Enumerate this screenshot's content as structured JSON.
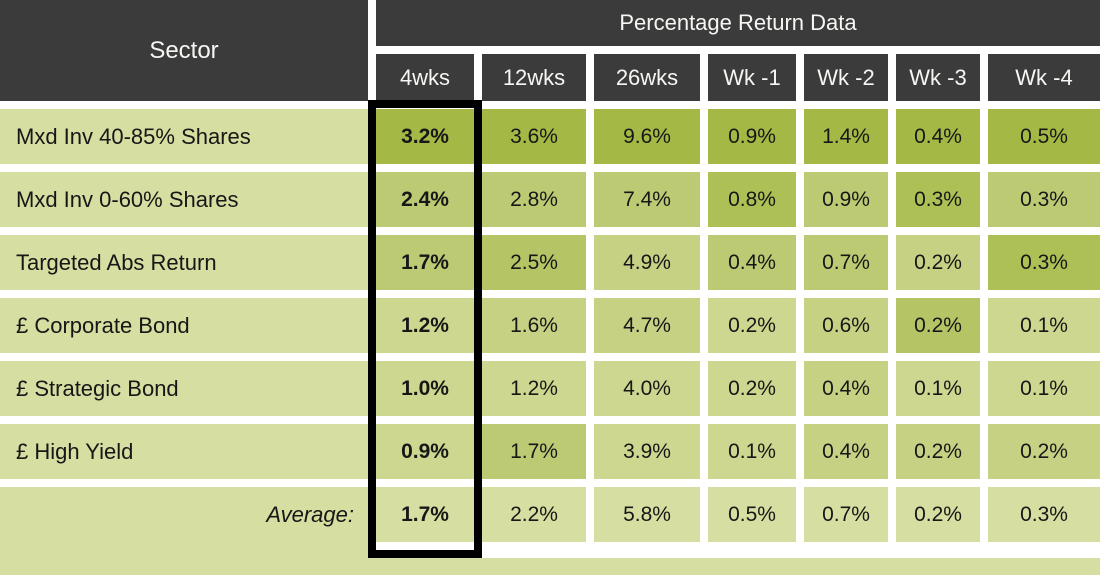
{
  "table": {
    "sector_header": "Sector",
    "group_header": "Percentage Return Data",
    "columns": [
      "4wks",
      "12wks",
      "26wks",
      "Wk -1",
      "Wk -2",
      "Wk -3",
      "Wk -4"
    ],
    "rows": [
      {
        "label": "Mxd Inv 40-85% Shares",
        "values": [
          "3.2%",
          "3.6%",
          "9.6%",
          "0.9%",
          "1.4%",
          "0.4%",
          "0.5%"
        ],
        "shades": [
          "A",
          "A",
          "A",
          "A",
          "A",
          "A",
          "A"
        ]
      },
      {
        "label": "Mxd Inv 0-60% Shares",
        "values": [
          "2.4%",
          "2.8%",
          "7.4%",
          "0.8%",
          "0.9%",
          "0.3%",
          "0.3%"
        ],
        "shades": [
          "D",
          "D",
          "D",
          "B",
          "D",
          "B",
          "D"
        ]
      },
      {
        "label": "Targeted Abs Return",
        "values": [
          "1.7%",
          "2.5%",
          "4.9%",
          "0.4%",
          "0.7%",
          "0.2%",
          "0.3%"
        ],
        "shades": [
          "D",
          "C",
          "E",
          "D",
          "D",
          "E",
          "B"
        ]
      },
      {
        "label": "£ Corporate Bond",
        "values": [
          "1.2%",
          "1.6%",
          "4.7%",
          "0.2%",
          "0.6%",
          "0.2%",
          "0.1%"
        ],
        "shades": [
          "F",
          "E",
          "E",
          "F",
          "E",
          "C",
          "F"
        ]
      },
      {
        "label": "£ Strategic Bond",
        "values": [
          "1.0%",
          "1.2%",
          "4.0%",
          "0.2%",
          "0.4%",
          "0.1%",
          "0.1%"
        ],
        "shades": [
          "F",
          "F",
          "F",
          "F",
          "E",
          "F",
          "F"
        ]
      },
      {
        "label": "£ High Yield",
        "values": [
          "0.9%",
          "1.7%",
          "3.9%",
          "0.1%",
          "0.4%",
          "0.2%",
          "0.2%"
        ],
        "shades": [
          "F",
          "D",
          "F",
          "F",
          "E",
          "E",
          "E"
        ]
      }
    ],
    "average_row": {
      "label": "Average:",
      "values": [
        "1.7%",
        "2.2%",
        "5.8%",
        "0.5%",
        "0.7%",
        "0.2%",
        "0.3%"
      ]
    },
    "highlighted_column": "4wks"
  },
  "colors": {
    "header_bg": "#3b3b3b",
    "header_text": "#f7f6f3",
    "cell_text": "#171717",
    "label_bg": "#d7dea1",
    "highlight_border": "#000000",
    "shades": {
      "A": "#a4b845",
      "B": "#adc056",
      "C": "#b5c464",
      "D": "#bdca74",
      "E": "#c6d183",
      "F": "#cdd78f",
      "G": "#d7dea1"
    }
  },
  "chart_data": {
    "type": "table",
    "title": "Percentage Return Data",
    "row_header": "Sector",
    "columns": [
      "4wks",
      "12wks",
      "26wks",
      "Wk -1",
      "Wk -2",
      "Wk -3",
      "Wk -4"
    ],
    "rows": [
      {
        "sector": "Mxd Inv 40-85% Shares",
        "values_pct": [
          3.2,
          3.6,
          9.6,
          0.9,
          1.4,
          0.4,
          0.5
        ]
      },
      {
        "sector": "Mxd Inv 0-60% Shares",
        "values_pct": [
          2.4,
          2.8,
          7.4,
          0.8,
          0.9,
          0.3,
          0.3
        ]
      },
      {
        "sector": "Targeted Abs Return",
        "values_pct": [
          1.7,
          2.5,
          4.9,
          0.4,
          0.7,
          0.2,
          0.3
        ]
      },
      {
        "sector": "£ Corporate Bond",
        "values_pct": [
          1.2,
          1.6,
          4.7,
          0.2,
          0.6,
          0.2,
          0.1
        ]
      },
      {
        "sector": "£ Strategic Bond",
        "values_pct": [
          1.0,
          1.2,
          4.0,
          0.2,
          0.4,
          0.1,
          0.1
        ]
      },
      {
        "sector": "£ High Yield",
        "values_pct": [
          0.9,
          1.7,
          3.9,
          0.1,
          0.4,
          0.2,
          0.2
        ]
      }
    ],
    "average_row": {
      "label": "Average:",
      "values_pct": [
        1.7,
        2.2,
        5.8,
        0.5,
        0.7,
        0.2,
        0.3
      ]
    },
    "highlighted_column": "4wks",
    "legend_position": "none",
    "notes": "Cells are heat-shaded green by relative value; 4wks column is outlined in black and bold."
  }
}
